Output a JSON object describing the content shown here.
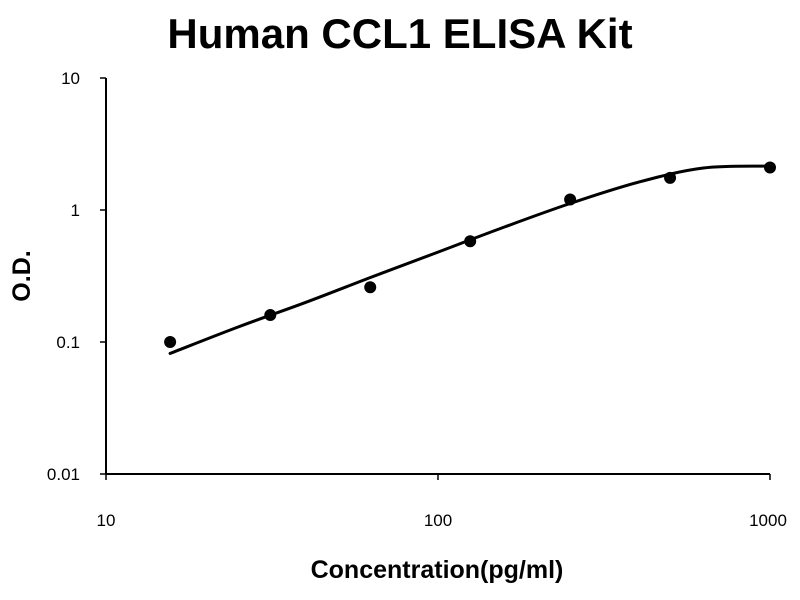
{
  "chart_data": {
    "type": "scatter",
    "title": "Human CCL1 ELISA Kit",
    "xlabel": "Concentration(pg/ml)",
    "ylabel": "O.D.",
    "xscale": "log",
    "yscale": "log",
    "xlim": [
      10,
      1000
    ],
    "ylim": [
      0.01,
      10
    ],
    "xticks": [
      10,
      100,
      1000
    ],
    "xtick_labels": [
      "10",
      "100",
      "1000"
    ],
    "yticks": [
      0.01,
      0.1,
      1,
      10
    ],
    "ytick_labels": [
      "0.01",
      "0.1",
      "1",
      "10"
    ],
    "grid": false,
    "legend": "none",
    "series": [
      {
        "kind": "points",
        "x": [
          15.6,
          31.25,
          62.5,
          125,
          250,
          500,
          1000
        ],
        "y": [
          0.1,
          0.16,
          0.26,
          0.58,
          1.2,
          1.75,
          2.1
        ]
      },
      {
        "kind": "fitted-curve",
        "x": [
          15.6,
          25,
          40,
          63,
          100,
          160,
          250,
          400,
          630,
          1000
        ],
        "y": [
          0.082,
          0.13,
          0.2,
          0.31,
          0.48,
          0.75,
          1.12,
          1.62,
          2.08,
          2.15
        ]
      }
    ],
    "colors": {
      "points": "#000000",
      "curve": "#000000",
      "axes": "#000000"
    }
  }
}
